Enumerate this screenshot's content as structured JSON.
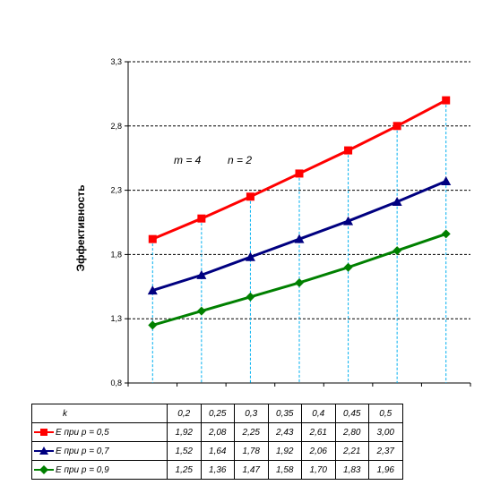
{
  "chart_data": {
    "type": "line",
    "x": [
      "0,2",
      "0,25",
      "0,3",
      "0,35",
      "0,4",
      "0,45",
      "0,5"
    ],
    "ylabel": "Эффективность",
    "ylim": [
      0.8,
      3.3
    ],
    "yticks": [
      "0,8",
      "1,3",
      "1,8",
      "2,3",
      "2,8",
      "3,3"
    ],
    "ytick_values": [
      0.8,
      1.3,
      1.8,
      2.3,
      2.8,
      3.3
    ],
    "annotations": [
      "m = 4",
      "n = 2"
    ],
    "grid": "horizontal dashed, vertical dashed drop lines",
    "series": [
      {
        "name": "E при p = 0,5",
        "color": "#ff0000",
        "marker": "square",
        "values": [
          1.92,
          2.08,
          2.25,
          2.43,
          2.61,
          2.8,
          3.0
        ],
        "labels": [
          "1,92",
          "2,08",
          "2,25",
          "2,43",
          "2,61",
          "2,80",
          "3,00"
        ]
      },
      {
        "name": "E при p = 0,7",
        "color": "#000080",
        "marker": "triangle",
        "values": [
          1.52,
          1.64,
          1.78,
          1.92,
          2.06,
          2.21,
          2.37
        ],
        "labels": [
          "1,52",
          "1,64",
          "1,78",
          "1,92",
          "2,06",
          "2,21",
          "2,37"
        ]
      },
      {
        "name": "E при p = 0,9",
        "color": "#008000",
        "marker": "diamond",
        "values": [
          1.25,
          1.36,
          1.47,
          1.58,
          1.7,
          1.83,
          1.96
        ],
        "labels": [
          "1,25",
          "1,36",
          "1,47",
          "1,58",
          "1,70",
          "1,83",
          "1,96"
        ]
      }
    ],
    "table": {
      "header_label": "k"
    }
  }
}
